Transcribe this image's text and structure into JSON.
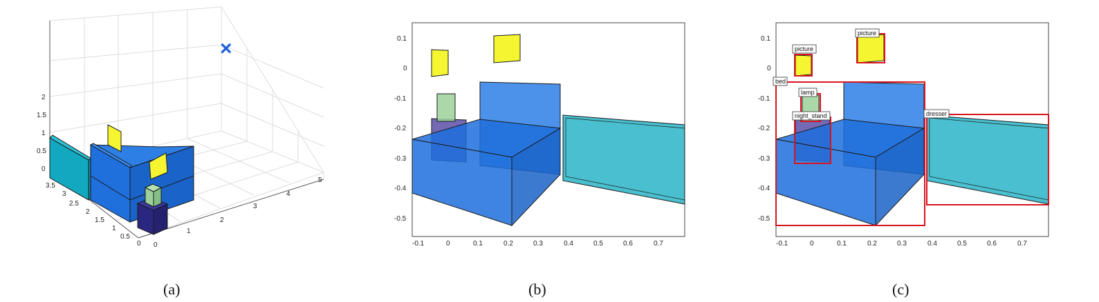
{
  "panels": {
    "a": {
      "caption": "(a)",
      "y_ticks": [
        "0",
        "0.5",
        "1",
        "1.5",
        "2",
        "2.5",
        "3",
        "3.5"
      ],
      "z_ticks": [
        "0",
        "0.5",
        "1",
        "1.5",
        "2"
      ],
      "x_ticks": [
        "0",
        "1",
        "2",
        "3",
        "4",
        "5"
      ],
      "camera_marker": "×"
    },
    "b": {
      "caption": "(b)",
      "x_ticks": [
        "-0.1",
        "0",
        "0.1",
        "0.2",
        "0.3",
        "0.4",
        "0.5",
        "0.6",
        "0.7"
      ],
      "y_ticks": [
        "0.1",
        "0",
        "-0.1",
        "-0.2",
        "-0.3",
        "-0.4",
        "-0.5"
      ]
    },
    "c": {
      "caption": "(c)",
      "x_ticks": [
        "-0.1",
        "0",
        "0.1",
        "0.2",
        "0.3",
        "0.4",
        "0.5",
        "0.6",
        "0.7"
      ],
      "y_ticks": [
        "0.1",
        "0",
        "-0.1",
        "-0.2",
        "-0.3",
        "-0.4",
        "-0.5"
      ],
      "labels": {
        "picture_left": "picture",
        "picture_right": "picture",
        "bed": "bed",
        "lamp": "lamp",
        "night_stand": "night_stand",
        "dresser": "dresser"
      }
    }
  },
  "colors": {
    "bed": "#1f6fdc",
    "dresser": "#3fbccc",
    "picture": "#f5f532",
    "lamp": "#9bd19a",
    "night_stand": "#2f2c8c",
    "bbox": "#d8141e",
    "camera": "#1f5fd8"
  }
}
